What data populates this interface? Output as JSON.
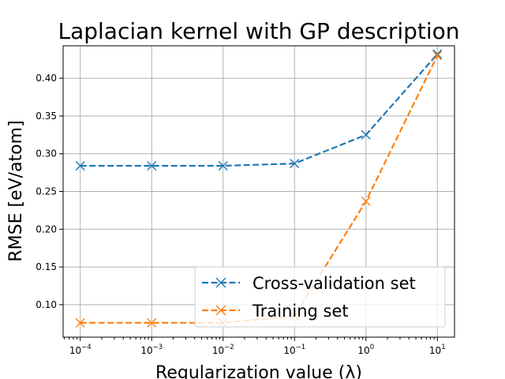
{
  "chart_data": {
    "type": "line",
    "title": "Laplacian kernel with GP description",
    "xlabel": "Regularization value (λ)",
    "ylabel": "RMSE [eV/atom]",
    "xscale": "log",
    "x": [
      0.0001,
      0.001,
      0.01,
      0.1,
      1,
      10
    ],
    "x_tick_labels": [
      {
        "base": "10",
        "exp": "−4"
      },
      {
        "base": "10",
        "exp": "−3"
      },
      {
        "base": "10",
        "exp": "−2"
      },
      {
        "base": "10",
        "exp": "−1"
      },
      {
        "base": "10",
        "exp": "0"
      },
      {
        "base": "10",
        "exp": "1"
      }
    ],
    "y_ticks": [
      "0.10",
      "0.15",
      "0.20",
      "0.25",
      "0.30",
      "0.35",
      "0.40"
    ],
    "ylim": [
      0.057,
      0.443
    ],
    "grid": true,
    "legend_position": "lower-right",
    "series": [
      {
        "name": "Cross-validation set",
        "color": "#1f77b4",
        "marker": "x",
        "linestyle": "dashed",
        "values": [
          0.284,
          0.284,
          0.284,
          0.287,
          0.325,
          0.432
        ]
      },
      {
        "name": "Training set",
        "color": "#ff7f0e",
        "marker": "x",
        "linestyle": "dashed",
        "values": [
          0.076,
          0.076,
          0.076,
          0.085,
          0.237,
          0.43
        ]
      }
    ]
  }
}
